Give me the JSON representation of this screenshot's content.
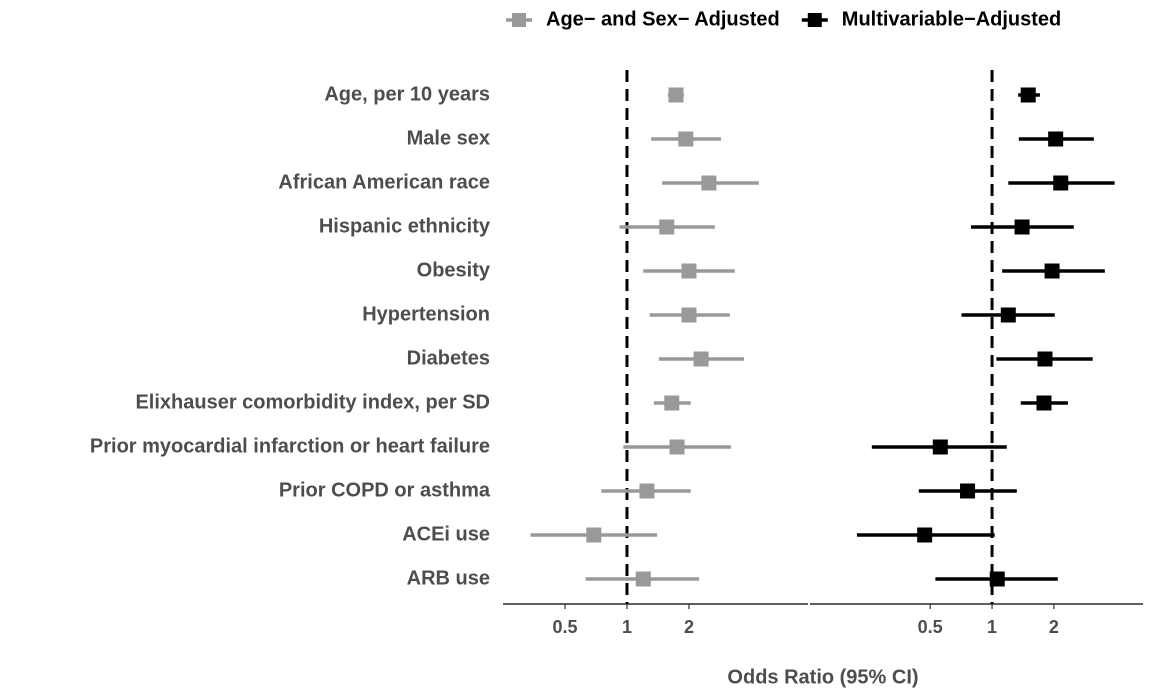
{
  "chart_data": {
    "type": "forest",
    "x_label": "Odds Ratio (95% CI)",
    "legend_position": "top",
    "log_scale": true,
    "categories": [
      "Age, per 10 years",
      "Male sex",
      "African American race",
      "Hispanic ethnicity",
      "Obesity",
      "Hypertension",
      "Diabetes",
      "Elixhauser comorbidity index, per SD",
      "Prior myocardial infarction or heart failure",
      "Prior COPD or asthma",
      "ACEi use",
      "ARB use"
    ],
    "series": [
      {
        "name": "Age− and Sex− Adjusted",
        "color": "#999999",
        "values": [
          1.73,
          1.93,
          2.5,
          1.56,
          2.0,
          2.0,
          2.29,
          1.65,
          1.75,
          1.25,
          0.69,
          1.2
        ],
        "lower": [
          1.58,
          1.31,
          1.48,
          0.92,
          1.2,
          1.29,
          1.43,
          1.35,
          0.96,
          0.75,
          0.34,
          0.63
        ],
        "upper": [
          1.89,
          2.86,
          4.37,
          2.67,
          3.34,
          3.16,
          3.7,
          2.04,
          3.2,
          2.04,
          1.4,
          2.24
        ],
        "xlim": [
          0.25,
          7.57
        ],
        "xticks": [
          0.5,
          1,
          2
        ],
        "reference_line": 1
      },
      {
        "name": "Multivariable−Adjusted",
        "color": "#000000",
        "values": [
          1.5,
          2.04,
          2.16,
          1.4,
          1.96,
          1.2,
          1.81,
          1.79,
          0.56,
          0.76,
          0.47,
          1.06
        ],
        "lower": [
          1.34,
          1.35,
          1.2,
          0.79,
          1.12,
          0.71,
          1.05,
          1.38,
          0.26,
          0.44,
          0.22,
          0.53
        ],
        "upper": [
          1.71,
          3.13,
          3.95,
          2.5,
          3.54,
          2.02,
          3.09,
          2.34,
          1.18,
          1.32,
          1.03,
          2.09
        ],
        "xlim": [
          0.13,
          5.43
        ],
        "xticks": [
          0.5,
          1,
          2
        ],
        "reference_line": 1
      }
    ]
  }
}
